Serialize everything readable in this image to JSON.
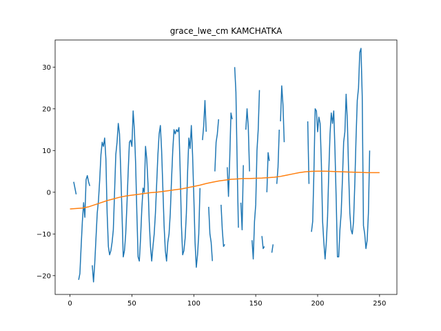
{
  "chart_data": {
    "type": "line",
    "title": "grace_lwe_cm KAMCHATKA",
    "xlabel": "",
    "ylabel": "",
    "xlim": [
      -12,
      264
    ],
    "ylim": [
      -24.5,
      36.5
    ],
    "xticks": [
      0,
      50,
      100,
      150,
      200,
      250
    ],
    "yticks": [
      -20,
      -10,
      0,
      10,
      20,
      30
    ],
    "grid": false,
    "legend": "none",
    "series": [
      {
        "color": "#1f77b4",
        "segments": [
          [
            [
              3,
              2.5
            ],
            [
              5,
              -0.5
            ]
          ],
          [
            [
              7,
              -21
            ],
            [
              8,
              -19.5
            ],
            [
              9,
              -13
            ],
            [
              10,
              -7
            ],
            [
              11,
              -2.5
            ],
            [
              12,
              -6
            ],
            [
              13,
              3
            ],
            [
              14,
              4
            ],
            [
              15,
              2.5
            ],
            [
              16,
              1.5
            ]
          ],
          [
            [
              18,
              -17.5
            ],
            [
              19,
              -21.5
            ],
            [
              20,
              -17
            ],
            [
              21,
              -11
            ],
            [
              22,
              -5
            ],
            [
              23,
              -2
            ],
            [
              24,
              3
            ],
            [
              25,
              9
            ],
            [
              26,
              12
            ],
            [
              27,
              11
            ],
            [
              28,
              13
            ],
            [
              29,
              8
            ],
            [
              30,
              -5
            ],
            [
              31,
              -13
            ],
            [
              32,
              -15
            ],
            [
              33,
              -14
            ],
            [
              34,
              -12
            ],
            [
              35,
              -9
            ],
            [
              36,
              0
            ],
            [
              37,
              9
            ],
            [
              38,
              12
            ],
            [
              39,
              16.5
            ],
            [
              40,
              14
            ],
            [
              41,
              5
            ],
            [
              42,
              -5
            ],
            [
              43,
              -15.5
            ],
            [
              44,
              -14
            ],
            [
              45,
              -10
            ],
            [
              46,
              -3
            ],
            [
              47,
              5
            ],
            [
              48,
              12
            ],
            [
              49,
              12.5
            ],
            [
              50,
              11
            ],
            [
              51,
              19.5
            ],
            [
              52,
              15
            ],
            [
              53,
              7
            ],
            [
              54,
              -5
            ],
            [
              55,
              -15.5
            ],
            [
              56,
              -16.5
            ],
            [
              57,
              -11
            ],
            [
              58,
              -4
            ],
            [
              59,
              1
            ],
            [
              60,
              0
            ],
            [
              61,
              11
            ],
            [
              62,
              8
            ],
            [
              63,
              2
            ],
            [
              64,
              -7
            ],
            [
              65,
              -13
            ],
            [
              66,
              -16.5
            ],
            [
              67,
              -13
            ],
            [
              68,
              -10
            ],
            [
              69,
              -5
            ],
            [
              70,
              2
            ],
            [
              71,
              9
            ],
            [
              72,
              14
            ],
            [
              73,
              16
            ],
            [
              74,
              10
            ],
            [
              75,
              1
            ],
            [
              76,
              -8
            ],
            [
              77,
              -14
            ],
            [
              78,
              -16.5
            ],
            [
              79,
              -12
            ],
            [
              80,
              -10
            ],
            [
              81,
              -5
            ],
            [
              82,
              3
            ],
            [
              83,
              10
            ],
            [
              84,
              15
            ],
            [
              85,
              14
            ],
            [
              86,
              15
            ],
            [
              87,
              14.5
            ],
            [
              88,
              15.5
            ],
            [
              89,
              5
            ],
            [
              90,
              -8
            ],
            [
              91,
              -15
            ],
            [
              92,
              -14
            ],
            [
              93,
              -11
            ],
            [
              94,
              -5
            ],
            [
              95,
              5
            ],
            [
              96,
              13
            ],
            [
              97,
              10.5
            ],
            [
              98,
              16
            ],
            [
              99,
              9
            ],
            [
              100,
              -1
            ],
            [
              101,
              -12
            ],
            [
              102,
              -18
            ],
            [
              103,
              -15
            ],
            [
              104,
              -10
            ],
            [
              105,
              1
            ]
          ],
          [
            [
              107,
              12.5
            ],
            [
              108,
              16
            ],
            [
              109,
              22
            ],
            [
              110,
              14.5
            ]
          ],
          [
            [
              112,
              -3.5
            ],
            [
              113,
              -10
            ],
            [
              114,
              -12
            ],
            [
              115,
              -16.5
            ]
          ],
          [
            [
              117,
              5
            ],
            [
              118,
              12
            ],
            [
              119,
              14
            ],
            [
              120,
              17.5
            ]
          ],
          [
            [
              122,
              -3
            ],
            [
              123,
              -9
            ],
            [
              124,
              -13
            ],
            [
              125,
              -12.5
            ]
          ],
          [
            [
              127,
              6
            ],
            [
              128,
              -1
            ],
            [
              129,
              8
            ],
            [
              130,
              19
            ],
            [
              131,
              17.5
            ]
          ],
          [
            [
              133,
              30
            ],
            [
              134,
              24
            ],
            [
              135,
              7
            ],
            [
              136,
              -8.5
            ]
          ],
          [
            [
              138,
              -2.5
            ],
            [
              139,
              -9
            ],
            [
              140,
              6.5
            ]
          ],
          [
            [
              142,
              15
            ],
            [
              143,
              20
            ],
            [
              144,
              15.5
            ],
            [
              145,
              5
            ]
          ],
          [
            [
              147,
              -11.5
            ],
            [
              148,
              -16
            ],
            [
              149,
              -7
            ],
            [
              150,
              -3
            ],
            [
              151,
              10
            ],
            [
              152,
              15
            ],
            [
              153,
              24.5
            ]
          ],
          [
            [
              155,
              -10.5
            ],
            [
              156,
              -13.5
            ],
            [
              157,
              -13
            ]
          ],
          [
            [
              159,
              0
            ],
            [
              160,
              9.5
            ],
            [
              161,
              7.5
            ]
          ],
          [
            [
              163,
              -14.5
            ],
            [
              164,
              -12.5
            ]
          ],
          [
            [
              167,
              2
            ],
            [
              168,
              6
            ],
            [
              169,
              15
            ]
          ],
          [
            [
              170,
              17
            ],
            [
              171,
              25.5
            ],
            [
              172,
              21
            ],
            [
              173,
              12
            ]
          ],
          [
            [
              192,
              17
            ],
            [
              193,
              2
            ]
          ],
          [
            [
              195,
              -9.5
            ],
            [
              196,
              -7
            ],
            [
              197,
              5
            ],
            [
              198,
              20
            ],
            [
              199,
              19.5
            ],
            [
              200,
              14.5
            ],
            [
              201,
              18
            ],
            [
              202,
              16.5
            ],
            [
              203,
              7
            ],
            [
              204,
              -7
            ],
            [
              205,
              -12
            ],
            [
              206,
              -16
            ],
            [
              207,
              -12
            ],
            [
              208,
              -6
            ],
            [
              209,
              5
            ],
            [
              210,
              14
            ],
            [
              211,
              19
            ],
            [
              212,
              16.5
            ],
            [
              213,
              19.5
            ],
            [
              214,
              10
            ],
            [
              215,
              -2
            ],
            [
              216,
              -15.5
            ],
            [
              217,
              -15.5
            ],
            [
              218,
              -9
            ],
            [
              219,
              -5
            ],
            [
              220,
              3
            ],
            [
              221,
              12
            ],
            [
              222,
              14.5
            ],
            [
              223,
              23.5
            ],
            [
              224,
              17
            ],
            [
              225,
              5
            ],
            [
              226,
              -5
            ],
            [
              227,
              -9
            ],
            [
              228,
              -10
            ],
            [
              229,
              -7
            ],
            [
              230,
              2
            ],
            [
              231,
              13
            ],
            [
              232,
              22
            ],
            [
              233,
              25
            ],
            [
              234,
              33.5
            ],
            [
              235,
              34.5
            ],
            [
              236,
              23
            ],
            [
              237,
              -8
            ],
            [
              238,
              -10
            ],
            [
              239,
              -13.5
            ],
            [
              240,
              -11.5
            ],
            [
              241,
              -5
            ],
            [
              242,
              10
            ]
          ]
        ]
      },
      {
        "color": "#ff7f0e",
        "segments": [
          [
            [
              0,
              -4
            ],
            [
              5,
              -3.9
            ],
            [
              10,
              -3.8
            ],
            [
              15,
              -3.5
            ],
            [
              20,
              -3
            ],
            [
              25,
              -2.5
            ],
            [
              30,
              -2
            ],
            [
              35,
              -1.6
            ],
            [
              40,
              -1.2
            ],
            [
              45,
              -0.9
            ],
            [
              50,
              -0.7
            ],
            [
              55,
              -0.5
            ],
            [
              60,
              -0.3
            ],
            [
              65,
              -0.1
            ],
            [
              70,
              0
            ],
            [
              75,
              0.2
            ],
            [
              80,
              0.4
            ],
            [
              85,
              0.6
            ],
            [
              90,
              0.8
            ],
            [
              95,
              1.1
            ],
            [
              100,
              1.4
            ],
            [
              105,
              1.7
            ],
            [
              110,
              2.1
            ],
            [
              115,
              2.4
            ],
            [
              120,
              2.7
            ],
            [
              125,
              2.9
            ],
            [
              130,
              3.1
            ],
            [
              135,
              3.2
            ],
            [
              140,
              3.3
            ],
            [
              145,
              3.3
            ],
            [
              150,
              3.35
            ],
            [
              155,
              3.4
            ],
            [
              160,
              3.5
            ],
            [
              165,
              3.6
            ],
            [
              170,
              3.8
            ],
            [
              175,
              4.1
            ],
            [
              180,
              4.4
            ],
            [
              185,
              4.7
            ],
            [
              190,
              4.9
            ],
            [
              195,
              5
            ],
            [
              200,
              5.05
            ],
            [
              205,
              5.05
            ],
            [
              210,
              5
            ],
            [
              215,
              4.95
            ],
            [
              220,
              4.9
            ],
            [
              225,
              4.85
            ],
            [
              230,
              4.8
            ],
            [
              235,
              4.75
            ],
            [
              240,
              4.7
            ],
            [
              245,
              4.7
            ],
            [
              250,
              4.7
            ]
          ]
        ]
      }
    ]
  }
}
